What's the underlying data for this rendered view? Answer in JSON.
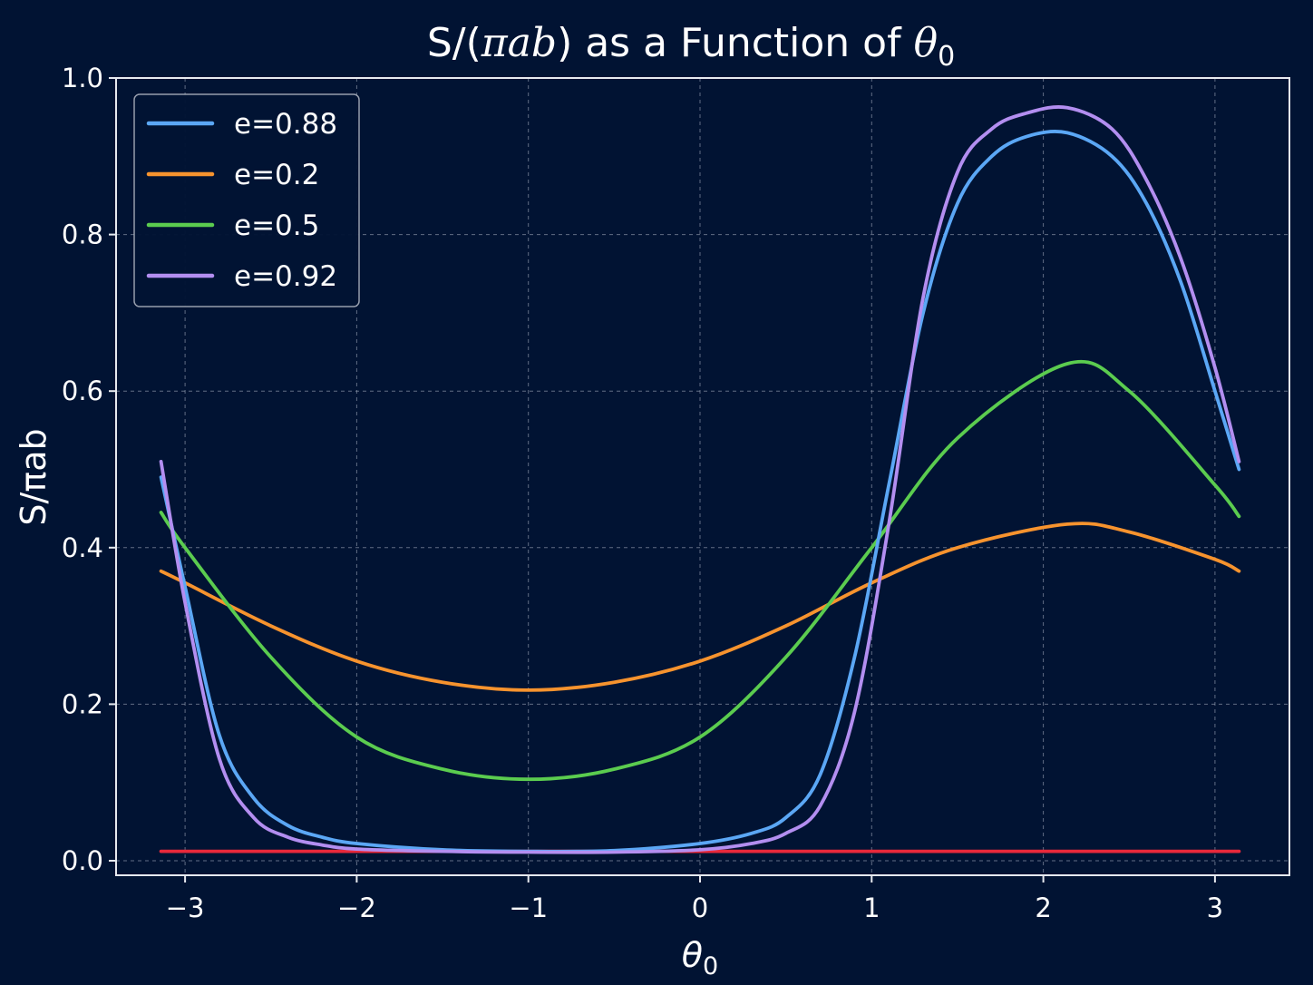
{
  "chart_data": {
    "type": "line",
    "title": "S/(πab) as a Function of θ0",
    "title_parts": {
      "prefix": "S/(",
      "pi": "π",
      "ab": "ab",
      "mid": ") as a Function of ",
      "theta": "θ",
      "sub": "0"
    },
    "xlabel": "θ0",
    "xlabel_parts": {
      "theta": "θ",
      "sub": "0"
    },
    "ylabel": "S/πab",
    "xlim": [
      -3.14159,
      3.14159
    ],
    "ylim": [
      0,
      1.0
    ],
    "xticks": [
      -3,
      -2,
      -1,
      0,
      1,
      2,
      3
    ],
    "xtick_labels": [
      "−3",
      "−2",
      "−1",
      "0",
      "1",
      "2",
      "3"
    ],
    "yticks": [
      0.0,
      0.2,
      0.4,
      0.6,
      0.8,
      1.0
    ],
    "ytick_labels": [
      "0.0",
      "0.2",
      "0.4",
      "0.6",
      "0.8",
      "1.0"
    ],
    "grid": true,
    "legend_position": "top-left",
    "background": "#011333",
    "series": [
      {
        "name": "e=0.88",
        "color": "#5ba7f5",
        "in_legend": true,
        "x": [
          -3.14,
          -3.0,
          -2.8,
          -2.6,
          -2.4,
          -2.2,
          -2.0,
          -1.5,
          -1.0,
          -0.5,
          0.0,
          0.3,
          0.5,
          0.7,
          0.9,
          1.1,
          1.3,
          1.5,
          1.7,
          1.9,
          2.14,
          2.4,
          2.6,
          2.8,
          3.0,
          3.14
        ],
        "y": [
          0.49,
          0.35,
          0.16,
          0.08,
          0.045,
          0.03,
          0.022,
          0.014,
          0.012,
          0.013,
          0.022,
          0.035,
          0.055,
          0.11,
          0.26,
          0.48,
          0.7,
          0.84,
          0.9,
          0.925,
          0.93,
          0.9,
          0.84,
          0.74,
          0.6,
          0.5
        ]
      },
      {
        "name": "e=0.2",
        "color": "#f7932e",
        "in_legend": true,
        "x": [
          -3.14,
          -3.0,
          -2.5,
          -2.0,
          -1.5,
          -1.0,
          -0.5,
          0.0,
          0.5,
          1.0,
          1.5,
          2.14,
          2.5,
          3.0,
          3.14
        ],
        "y": [
          0.37,
          0.355,
          0.3,
          0.255,
          0.228,
          0.218,
          0.228,
          0.255,
          0.3,
          0.355,
          0.4,
          0.43,
          0.42,
          0.385,
          0.37
        ]
      },
      {
        "name": "e=0.5",
        "color": "#5bcc4f",
        "in_legend": true,
        "x": [
          -3.14,
          -3.0,
          -2.5,
          -2.0,
          -1.5,
          -1.0,
          -0.5,
          0.0,
          0.5,
          1.0,
          1.5,
          2.14,
          2.5,
          3.0,
          3.14
        ],
        "y": [
          0.445,
          0.4,
          0.26,
          0.158,
          0.117,
          0.104,
          0.117,
          0.158,
          0.26,
          0.4,
          0.54,
          0.635,
          0.6,
          0.48,
          0.44
        ]
      },
      {
        "name": "e=0.92",
        "color": "#b38ef0",
        "in_legend": true,
        "x": [
          -3.14,
          -3.0,
          -2.8,
          -2.6,
          -2.4,
          -2.2,
          -2.0,
          -1.5,
          -1.0,
          -0.5,
          0.0,
          0.3,
          0.5,
          0.7,
          0.9,
          1.1,
          1.3,
          1.5,
          1.7,
          1.9,
          2.14,
          2.4,
          2.6,
          2.8,
          3.0,
          3.14
        ],
        "y": [
          0.51,
          0.33,
          0.13,
          0.055,
          0.03,
          0.02,
          0.015,
          0.012,
          0.011,
          0.011,
          0.014,
          0.022,
          0.035,
          0.07,
          0.19,
          0.43,
          0.72,
          0.88,
          0.935,
          0.955,
          0.962,
          0.935,
          0.87,
          0.77,
          0.63,
          0.51
        ]
      },
      {
        "name": "",
        "color": "#e8293b",
        "in_legend": false,
        "x": [
          -3.14,
          3.14
        ],
        "y": [
          0.012,
          0.012
        ]
      }
    ]
  }
}
